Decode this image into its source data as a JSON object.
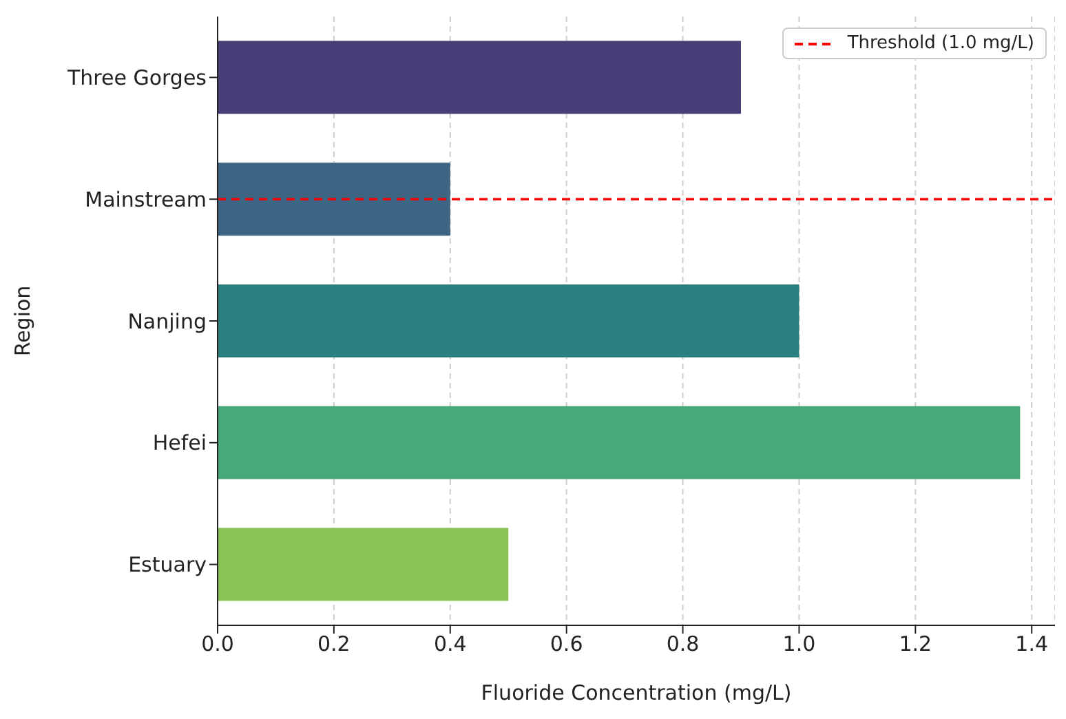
{
  "chart_data": {
    "type": "bar",
    "orientation": "horizontal",
    "xlabel": "Fluoride Concentration (mg/L)",
    "ylabel": "Region",
    "categories": [
      "Three Gorges",
      "Mainstream",
      "Nanjing",
      "Hefei",
      "Estuary"
    ],
    "values": [
      0.9,
      0.4,
      1.0,
      1.38,
      0.5
    ],
    "colors": [
      "#4a3e79",
      "#3e6484",
      "#2d8080",
      "#48a978",
      "#8cc356"
    ],
    "xlim": [
      0,
      1.44
    ],
    "xticks": [
      {
        "value": 0,
        "label": "0.0"
      },
      0.2,
      0.4,
      0.6,
      0.8,
      {
        "value": 1,
        "label": "1.0"
      },
      1.2,
      1.4
    ],
    "grid": "x",
    "legend": "top right",
    "ref_lines": [
      {
        "axis": "y",
        "value": "Mainstream",
        "label": "Threshold (1.0 mg/L)",
        "color": "#ff0000",
        "line_style": "dashed"
      }
    ]
  }
}
